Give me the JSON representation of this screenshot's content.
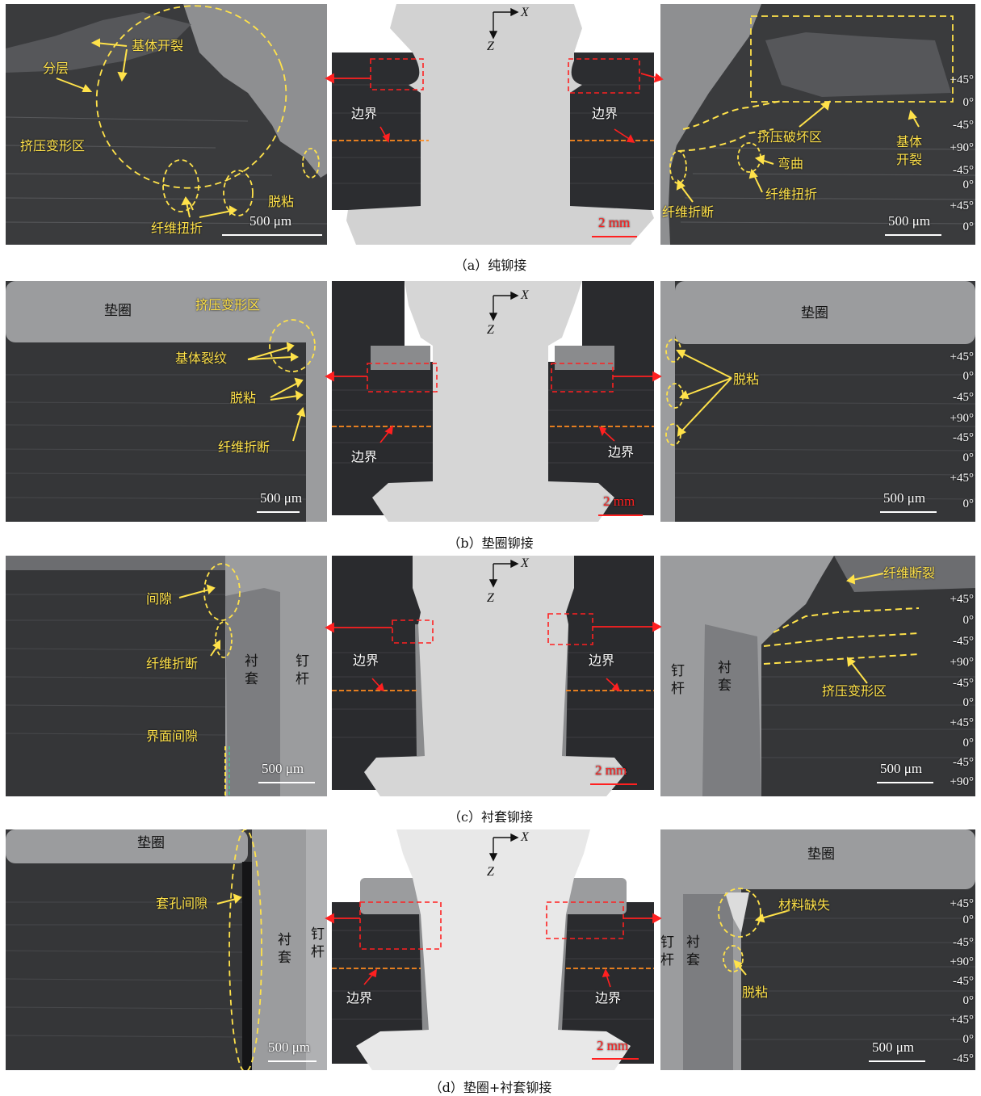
{
  "rows": [
    {
      "caption": "（a）纯铆接",
      "left": {
        "labels": [
          "基体开裂",
          "分层",
          "挤压变形区",
          "纤维扭折",
          "脱粘"
        ],
        "scale": "500 μm"
      },
      "center": {
        "axis_x": "X",
        "axis_z": "Z",
        "boundary_left": "边界",
        "boundary_right": "边界",
        "scale": "2 mm"
      },
      "right": {
        "labels": [
          "挤压破坏区",
          "基体开裂",
          "弯曲",
          "纤维扭折",
          "纤维折断"
        ],
        "plies": [
          "+45°",
          "0°",
          "-45°",
          "+90°",
          "-45°",
          "0°",
          "+45°",
          "0°"
        ],
        "scale": "500 μm"
      }
    },
    {
      "caption": "（b）垫圈铆接",
      "left": {
        "labels": [
          "垫圈",
          "挤压变形区",
          "基体裂纹",
          "脱粘",
          "纤维折断"
        ],
        "scale": "500 μm"
      },
      "center": {
        "axis_x": "X",
        "axis_z": "Z",
        "boundary_left": "边界",
        "boundary_right": "边界",
        "scale": "2 mm"
      },
      "right": {
        "labels": [
          "垫圈",
          "脱粘"
        ],
        "plies": [
          "+45°",
          "0°",
          "-45°",
          "+90°",
          "-45°",
          "0°",
          "+45°",
          "0°"
        ],
        "scale": "500 μm"
      }
    },
    {
      "caption": "（c）衬套铆接",
      "left": {
        "labels": [
          "间隙",
          "纤维折断",
          "衬套",
          "钉杆",
          "界面间隙"
        ],
        "scale": "500 μm"
      },
      "center": {
        "axis_x": "X",
        "axis_z": "Z",
        "boundary_left": "边界",
        "boundary_right": "边界",
        "scale": "2 mm"
      },
      "right": {
        "labels": [
          "纤维断裂",
          "钉杆",
          "衬套",
          "挤压变形区"
        ],
        "plies": [
          "+45°",
          "0°",
          "-45°",
          "+90°",
          "-45°",
          "0°",
          "+45°",
          "0°",
          "-45°",
          "+90°"
        ],
        "scale": "500 μm"
      }
    },
    {
      "caption": "（d）垫圈+衬套铆接",
      "left": {
        "labels": [
          "垫圈",
          "套孔间隙",
          "衬套",
          "钉杆"
        ],
        "scale": "500 μm"
      },
      "center": {
        "axis_x": "X",
        "axis_z": "Z",
        "boundary_left": "边界",
        "boundary_right": "边界",
        "scale": "2 mm"
      },
      "right": {
        "labels": [
          "垫圈",
          "材料缺失",
          "钉杆",
          "衬套",
          "脱粘"
        ],
        "plies": [
          "+45°",
          "0°",
          "-45°",
          "+90°",
          "-45°",
          "0°",
          "+45°",
          "0°",
          "-45°"
        ],
        "scale": "500 μm"
      }
    }
  ],
  "colors": {
    "annotation": "#ffe24a",
    "marker_box": "#ff2020",
    "boundary_line": "#ff8a1e",
    "composite": "#333336",
    "metal": "#cfcfcf"
  }
}
